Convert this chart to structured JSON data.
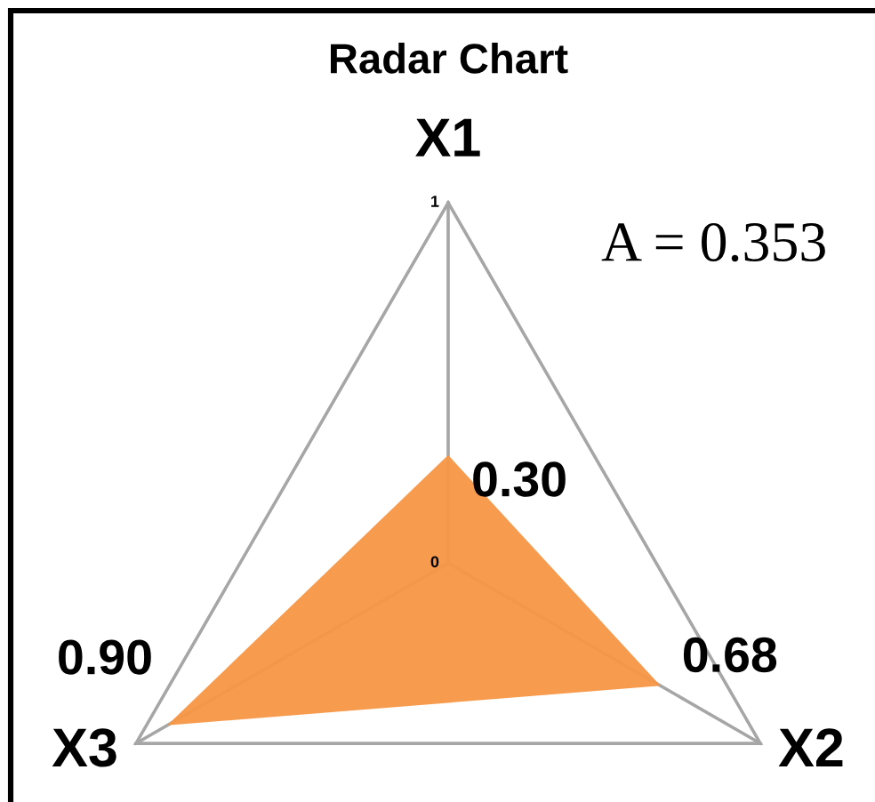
{
  "chart_data": {
    "type": "radar",
    "title": "Radar Chart",
    "categories": [
      "X1",
      "X2",
      "X3"
    ],
    "series": [
      {
        "color": "#f79646",
        "values": [
          0.3,
          0.68,
          0.9
        ],
        "value_labels": [
          "0.30",
          "0.68",
          "0.90"
        ]
      }
    ],
    "ylim": [
      0,
      1
    ],
    "yticks": [
      0,
      1
    ],
    "grid": true,
    "annotations": [
      "A = 0.353"
    ]
  }
}
